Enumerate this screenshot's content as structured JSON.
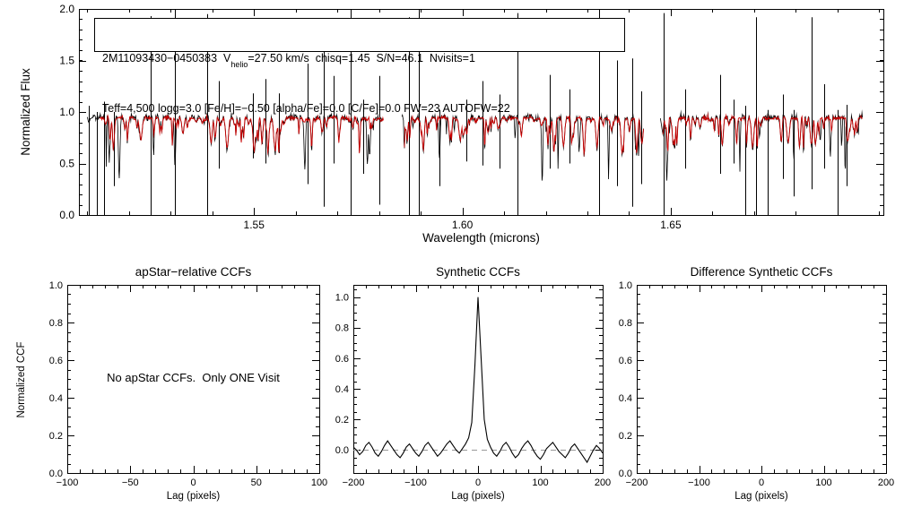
{
  "colors": {
    "background": "#ffffff",
    "axis": "#000000",
    "observed": "#000000",
    "model": "#cc0000",
    "zero_line": "#999999"
  },
  "header_box": {
    "id": "2M11093430−0450383",
    "v_pre": "  V",
    "v_sub": "helio",
    "v_rest": "=27.50 km/s  chisq=1.45  S/N=46.1  Nvisits=1",
    "line2": "Teff=4,500 logg=3.0 [Fe/H]=−0.50 [alpha/Fe]=0.0 [C/Fe]=0.0 FW=23 AUTOFW=22"
  },
  "chart_data": [
    {
      "id": "spectrum",
      "type": "line",
      "title": "",
      "xlabel": "Wavelength (microns)",
      "ylabel": "Normalized Flux",
      "xlim": [
        1.508,
        1.701
      ],
      "ylim": [
        0.0,
        2.0
      ],
      "xticks": [
        1.55,
        1.6,
        1.65
      ],
      "xtick_labels": [
        "1.55",
        "1.60",
        "1.65"
      ],
      "x_minor_step": 0.01,
      "yticks": [
        0.0,
        0.5,
        1.0,
        1.5,
        2.0
      ],
      "ytick_labels": [
        "0.0",
        "0.5",
        "1.0",
        "1.5",
        "2.0"
      ],
      "y_minor_step": 0.1,
      "continuum": 0.95,
      "segments": [
        [
          1.51,
          1.581
        ],
        [
          1.5855,
          1.6435
        ],
        [
          1.6475,
          1.696
        ]
      ],
      "series": [
        {
          "name": "observed spectrum",
          "color": "#000000"
        },
        {
          "name": "best-fit synthetic model",
          "color": "#cc0000"
        }
      ],
      "sky_spikes": [
        [
          1.5103,
          1.06,
          0.0
        ],
        [
          1.5122,
          1.0,
          0.0
        ],
        [
          1.514,
          1.1,
          0.0
        ],
        [
          1.5163,
          1.0,
          0.28
        ],
        [
          1.5252,
          1.93,
          0.0
        ],
        [
          1.531,
          2.0,
          0.0
        ],
        [
          1.5388,
          1.95,
          0.0
        ],
        [
          1.5415,
          1.3,
          0.45
        ],
        [
          1.5498,
          1.18,
          0.55
        ],
        [
          1.5528,
          1.32,
          0.5
        ],
        [
          1.556,
          1.18,
          0.6
        ],
        [
          1.5628,
          1.47,
          0.3
        ],
        [
          1.5668,
          1.88,
          0.08
        ],
        [
          1.5692,
          1.35,
          0.5
        ],
        [
          1.5733,
          2.0,
          0.0
        ],
        [
          1.5762,
          1.12,
          0.4
        ],
        [
          1.58,
          1.35,
          0.1
        ],
        [
          1.5872,
          1.92,
          0.0
        ],
        [
          1.5895,
          2.0,
          0.0
        ],
        [
          1.5945,
          1.02,
          0.28
        ],
        [
          1.601,
          1.12,
          0.52
        ],
        [
          1.6048,
          1.3,
          0.48
        ],
        [
          1.609,
          1.17,
          0.45
        ],
        [
          1.6133,
          1.96,
          0.0
        ],
        [
          1.621,
          1.36,
          0.45
        ],
        [
          1.6257,
          1.22,
          0.5
        ],
        [
          1.6328,
          2.0,
          0.0
        ],
        [
          1.6372,
          1.5,
          0.28
        ],
        [
          1.6408,
          1.52,
          0.08
        ],
        [
          1.6428,
          1.2,
          0.3
        ],
        [
          1.6482,
          1.96,
          0.0
        ],
        [
          1.6535,
          1.22,
          0.45
        ],
        [
          1.6618,
          1.36,
          0.4
        ],
        [
          1.665,
          1.12,
          0.5
        ],
        [
          1.6678,
          1.06,
          0.0
        ],
        [
          1.6705,
          1.92,
          0.0
        ],
        [
          1.6733,
          1.02,
          0.0
        ],
        [
          1.6768,
          1.17,
          0.35
        ],
        [
          1.6795,
          1.02,
          0.18
        ],
        [
          1.6838,
          1.92,
          0.25
        ],
        [
          1.6868,
          1.27,
          0.45
        ],
        [
          1.69,
          1.02,
          0.0
        ],
        [
          1.6922,
          1.07,
          0.28
        ]
      ]
    },
    {
      "id": "apstar_ccf",
      "type": "line",
      "title": "apStar−relative CCFs",
      "xlabel": "Lag (pixels)",
      "ylabel": "Normalized CCF",
      "xlim": [
        -100,
        100
      ],
      "ylim": [
        0.0,
        1.0
      ],
      "xticks": [
        -100,
        -50,
        0,
        50,
        100
      ],
      "xtick_labels": [
        "−100",
        "−50",
        "0",
        "50",
        "100"
      ],
      "x_minor_step": 10,
      "yticks": [
        0.0,
        0.2,
        0.4,
        0.6,
        0.8,
        1.0
      ],
      "ytick_labels": [
        "0.0",
        "0.2",
        "0.4",
        "0.6",
        "0.8",
        "1.0"
      ],
      "y_minor_step": 0.05,
      "series": [],
      "annotation": "No apStar CCFs.  Only ONE Visit"
    },
    {
      "id": "synthetic_ccf",
      "type": "line",
      "title": "Synthetic CCFs",
      "xlabel": "Lag (pixels)",
      "ylabel": "",
      "xlim": [
        -200,
        200
      ],
      "ylim": [
        -0.15,
        1.08
      ],
      "xticks": [
        -200,
        -100,
        0,
        100,
        200
      ],
      "xtick_labels": [
        "−200",
        "−100",
        "0",
        "100",
        "200"
      ],
      "x_minor_step": 20,
      "yticks": [
        0.0,
        0.2,
        0.4,
        0.6,
        0.8,
        1.0
      ],
      "ytick_labels": [
        "0.0",
        "0.2",
        "0.4",
        "0.6",
        "0.8",
        "1.0"
      ],
      "y_minor_step": 0.05,
      "zero_line_dashed": true,
      "series": [
        {
          "name": "synthetic CCF",
          "x_start": -200,
          "x_step": 5,
          "values": [
            0.02,
            0.0,
            -0.03,
            -0.01,
            0.03,
            0.05,
            0.02,
            -0.02,
            -0.04,
            -0.01,
            0.03,
            0.06,
            0.03,
            0.0,
            -0.03,
            -0.05,
            -0.02,
            0.02,
            0.04,
            0.01,
            -0.02,
            -0.04,
            -0.01,
            0.03,
            0.05,
            0.02,
            -0.01,
            -0.04,
            -0.02,
            0.01,
            0.04,
            0.06,
            0.03,
            0.0,
            -0.02,
            0.01,
            0.04,
            0.08,
            0.18,
            0.55,
            1.0,
            0.6,
            0.2,
            0.07,
            0.02,
            -0.02,
            -0.04,
            -0.01,
            0.03,
            0.05,
            0.02,
            -0.02,
            -0.05,
            -0.03,
            0.01,
            0.04,
            0.06,
            0.03,
            -0.01,
            -0.04,
            -0.06,
            -0.03,
            0.01,
            0.03,
            0.05,
            0.02,
            -0.01,
            -0.03,
            -0.05,
            -0.02,
            0.02,
            0.04,
            0.01,
            -0.02,
            -0.05,
            -0.08,
            -0.04,
            0.0,
            0.03,
            0.01,
            -0.02
          ]
        }
      ]
    },
    {
      "id": "difference_ccf",
      "type": "line",
      "title": "Difference Synthetic CCFs",
      "xlabel": "Lag (pixels)",
      "ylabel": "",
      "xlim": [
        -200,
        200
      ],
      "ylim": [
        0.0,
        1.0
      ],
      "xticks": [
        -200,
        -100,
        0,
        100,
        200
      ],
      "xtick_labels": [
        "−200",
        "−100",
        "0",
        "100",
        "200"
      ],
      "x_minor_step": 20,
      "yticks": [
        0.0,
        0.2,
        0.4,
        0.6,
        0.8,
        1.0
      ],
      "ytick_labels": [
        "0.0",
        "0.2",
        "0.4",
        "0.6",
        "0.8",
        "1.0"
      ],
      "y_minor_step": 0.05,
      "series": []
    }
  ]
}
